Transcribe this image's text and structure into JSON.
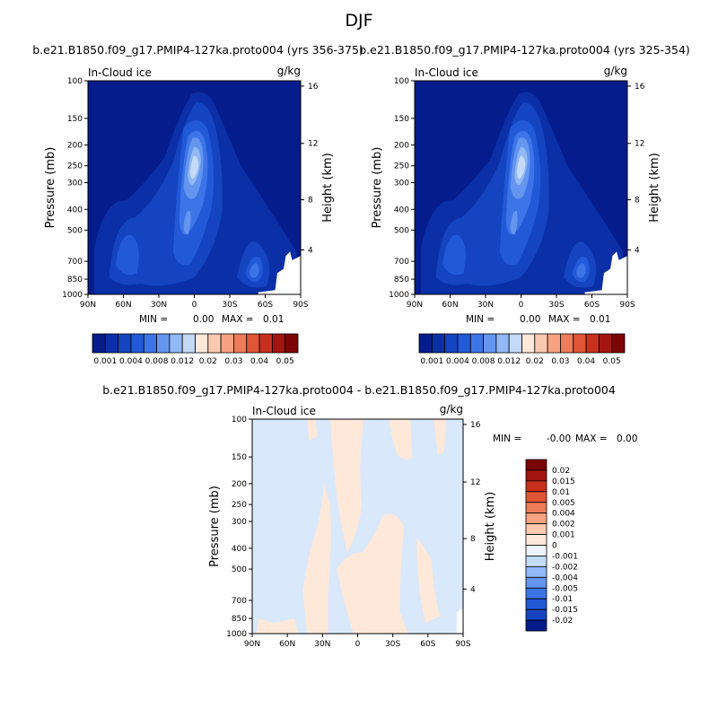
{
  "main_title": "DJF",
  "chart_data": [
    {
      "type": "heatmap",
      "title": "b.e21.B1850.f09_g17.PMIP4-127ka.proto004 (yrs 356-375)",
      "left_string": "In-Cloud ice",
      "right_string": "g/kg",
      "xlabel": "",
      "ylabel": "Pressure (mb)",
      "ylabel_right": "Height (km)",
      "x_ticks": [
        "90N",
        "60N",
        "30N",
        "0",
        "30S",
        "60S",
        "90S"
      ],
      "y_ticks": [
        "100",
        "150",
        "200",
        "250",
        "300",
        "400",
        "500",
        "700",
        "850",
        "1000"
      ],
      "y_right_ticks": [
        "16",
        "12",
        "8",
        "4"
      ],
      "stats": {
        "min_label": "MIN =",
        "min_value": "0.00",
        "max_label": "MAX =",
        "max_value": "0.01"
      },
      "colorbar": {
        "orientation": "horizontal",
        "labels": [
          "0.001",
          "0.004",
          "0.008",
          "0.012",
          "0.02",
          "0.03",
          "0.04",
          "0.05"
        ],
        "colors": [
          "#041c8c",
          "#0a2fa6",
          "#1444c0",
          "#2259d6",
          "#3d75e8",
          "#6496f0",
          "#92b8f5",
          "#c4daf7",
          "#fde8da",
          "#fbc8b0",
          "#f6a283",
          "#ee7b5a",
          "#e05535",
          "#c7301c",
          "#a31510",
          "#7c0505"
        ]
      }
    },
    {
      "type": "heatmap",
      "title": "b.e21.B1850.f09_g17.PMIP4-127ka.proto004 (yrs 325-354)",
      "left_string": "In-Cloud ice",
      "right_string": "g/kg",
      "xlabel": "",
      "ylabel": "Pressure (mb)",
      "ylabel_right": "Height (km)",
      "x_ticks": [
        "90N",
        "60N",
        "30N",
        "0",
        "30S",
        "60S",
        "90S"
      ],
      "y_ticks": [
        "100",
        "150",
        "200",
        "250",
        "300",
        "400",
        "500",
        "700",
        "850",
        "1000"
      ],
      "y_right_ticks": [
        "16",
        "12",
        "8",
        "4"
      ],
      "stats": {
        "min_label": "MIN =",
        "min_value": "0.00",
        "max_label": "MAX =",
        "max_value": "0.01"
      }
    },
    {
      "type": "heatmap",
      "title": "b.e21.B1850.f09_g17.PMIP4-127ka.proto004 - b.e21.B1850.f09_g17.PMIP4-127ka.proto004",
      "left_string": "In-Cloud ice",
      "right_string": "g/kg",
      "xlabel": "",
      "ylabel": "Pressure (mb)",
      "ylabel_right": "Height (km)",
      "x_ticks": [
        "90N",
        "60N",
        "30N",
        "0",
        "30S",
        "60S",
        "90S"
      ],
      "y_ticks": [
        "100",
        "150",
        "200",
        "250",
        "300",
        "400",
        "500",
        "700",
        "850",
        "1000"
      ],
      "y_right_ticks": [
        "16",
        "12",
        "8",
        "4"
      ],
      "stats": {
        "min_label": "MIN =",
        "min_value": "-0.00",
        "max_label": "MAX =",
        "max_value": "0.00"
      },
      "colorbar": {
        "orientation": "vertical",
        "labels": [
          "0.02",
          "0.015",
          "0.01",
          "0.005",
          "0.004",
          "0.002",
          "0.001",
          "0",
          "-0.001",
          "-0.002",
          "-0.004",
          "-0.005",
          "-0.01",
          "-0.015",
          "-0.02"
        ],
        "colors": [
          "#7c0505",
          "#a31510",
          "#c7301c",
          "#e05535",
          "#ee7b5a",
          "#f6a283",
          "#fbc8b0",
          "#fde8da",
          "#eef3fb",
          "#c4daf7",
          "#92b8f5",
          "#6496f0",
          "#3d75e8",
          "#2259d6",
          "#1444c0",
          "#041c8c"
        ]
      }
    }
  ]
}
